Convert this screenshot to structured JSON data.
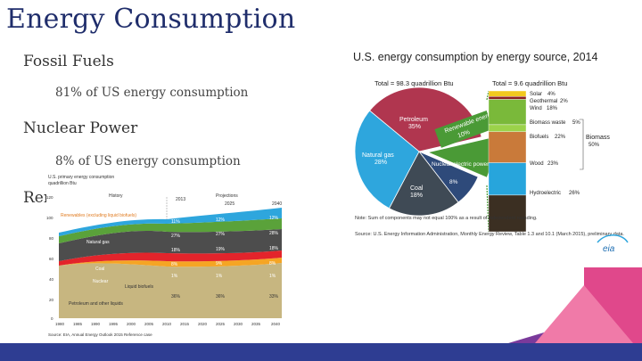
{
  "slide": {
    "title": "Energy Consumption",
    "bullets": [
      {
        "label": "Fossil Fuels",
        "sub": "81% of US energy consumption"
      },
      {
        "label": "Nuclear Power",
        "sub": "8% of US energy consumption"
      },
      {
        "label": "Renewables"
      }
    ]
  },
  "colors": {
    "title": "#1f2d6b",
    "bar": "#2e3d92",
    "pink": "#e0488b",
    "violet": "#7a3a9b"
  },
  "left_chart": {
    "title_lines": [
      "U.S. primary energy consumption",
      "quadrillion Btu"
    ],
    "history_label": "History",
    "year_label": "2013",
    "projections_label": "Projections",
    "year_label_2": "2025",
    "year_label_3": "2040",
    "renewables_label": "Renewables (excluding liquid biofuels)",
    "layers": [
      "Natural gas",
      "Coal",
      "Nuclear",
      "Liquid biofuels",
      "Petroleum and other liquids"
    ],
    "y_ticks": [
      "0",
      "20",
      "40",
      "60",
      "80",
      "100",
      "120"
    ],
    "x_ticks": [
      "1980",
      "1985",
      "1990",
      "1995",
      "2000",
      "2005",
      "2010",
      "2015",
      "2020",
      "2025",
      "2030",
      "2035",
      "2040"
    ],
    "pct_columns": [
      [
        "11%",
        "27%",
        "18%",
        "8%",
        "1%",
        "36%"
      ],
      [
        "12%",
        "27%",
        "19%",
        "9%",
        "1%",
        "36%"
      ],
      [
        "12%",
        "28%",
        "18%",
        "8%",
        "1%",
        "33%"
      ]
    ],
    "source": "Source: EIA, Annual Energy Outlook 2015 Reference case"
  },
  "right_chart": {
    "title": "U.S. energy consumption by energy source, 2014",
    "total_left": "Total = 98.3 quadrillion Btu",
    "total_right": "Total = 9.6 quadrillion Btu",
    "slices": [
      {
        "name": "Petroleum",
        "pct": "35%",
        "value": 35,
        "color": "#b0364f"
      },
      {
        "name": "Renewable energy",
        "pct": "10%",
        "value": 10,
        "color": "#4a9a36"
      },
      {
        "name": "Nuclear electric power",
        "pct": "8%",
        "value": 8,
        "color": "#2e4a7a"
      },
      {
        "name": "Coal",
        "pct": "18%",
        "value": 18,
        "color": "#3f4a55"
      },
      {
        "name": "Natural gas",
        "pct": "28%",
        "value": 28,
        "color": "#2ea6dd"
      }
    ],
    "renewables": [
      {
        "name": "Solar",
        "pct": "4%",
        "value": 4,
        "color": "#f2c81e"
      },
      {
        "name": "Geothermal",
        "pct": "2%",
        "value": 2,
        "color": "#8e1f1f"
      },
      {
        "name": "Wind",
        "pct": "18%",
        "value": 18,
        "color": "#7ab93a"
      },
      {
        "name": "Biomass waste",
        "pct": "5%",
        "value": 5,
        "color": "#9bd24a"
      },
      {
        "name": "Biofuels",
        "pct": "22%",
        "value": 22,
        "color": "#c97a3a"
      },
      {
        "name": "Wood",
        "pct": "23%",
        "value": 23,
        "color": "#27a5dc"
      },
      {
        "name": "Hydroelectric",
        "pct": "26%",
        "value": 26,
        "color": "#3b2f22"
      }
    ],
    "biomass_label": "Biomass",
    "biomass_pct": "50%",
    "note": "Note: Sum of components may not equal 100% as a result of independent rounding.",
    "source": "Source: U.S. Energy Information Administration, Monthly Energy Review, Table 1.3 and 10.1 (March 2015), preliminary data.",
    "logo": "eia"
  }
}
